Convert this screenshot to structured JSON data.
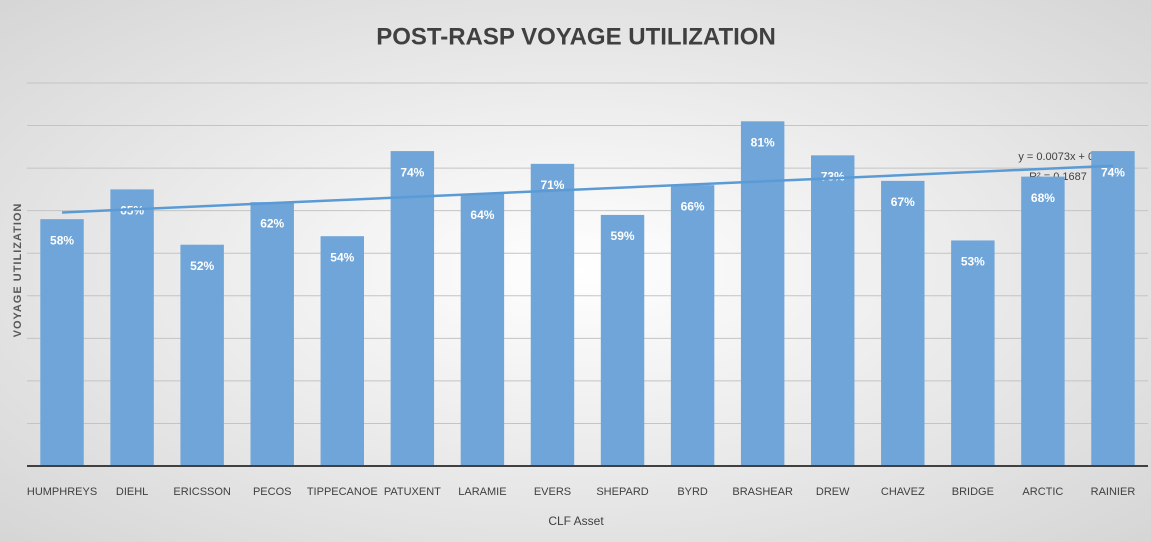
{
  "chart_data": {
    "type": "bar",
    "title": "POST-RASP VOYAGE UTILIZATION",
    "x_label": "CLF Asset",
    "y_label": "VOYAGE UTILIZATION",
    "categories": [
      "HUMPHREYS",
      "DIEHL",
      "ERICSSON",
      "PECOS",
      "TIPPECANOE",
      "PATUXENT",
      "LARAMIE",
      "EVERS",
      "SHEPARD",
      "BYRD",
      "BRASHEAR",
      "DREW",
      "CHAVEZ",
      "BRIDGE",
      "ARCTIC",
      "RAINIER"
    ],
    "values": [
      58,
      65,
      52,
      62,
      54,
      74,
      64,
      71,
      59,
      66,
      81,
      73,
      67,
      53,
      68,
      74
    ],
    "value_labels": [
      "58%",
      "65%",
      "52%",
      "62%",
      "54%",
      "74%",
      "64%",
      "71%",
      "59%",
      "66%",
      "81%",
      "73%",
      "67%",
      "53%",
      "68%",
      "74%"
    ],
    "color": "#6fa5d9",
    "trendline_color": "#5b9bd5",
    "annotations": [
      "y = 0.0073x + 0.5881",
      "R² = 0.1687"
    ],
    "ylim": [
      0,
      90
    ],
    "yticks": [
      0,
      10,
      20,
      30,
      40,
      50,
      60,
      70,
      80,
      90
    ],
    "grid": true
  }
}
